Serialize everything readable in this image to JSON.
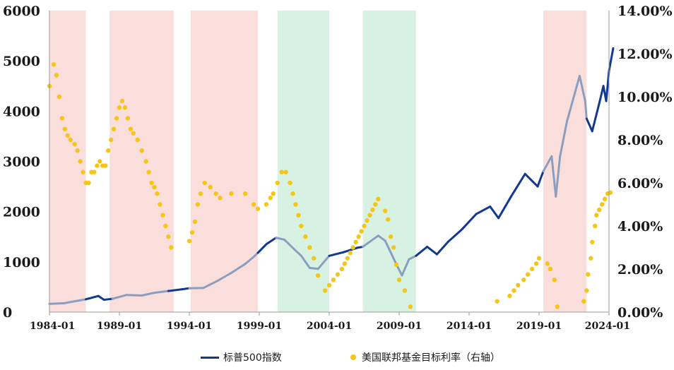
{
  "chart_data": {
    "type": "line",
    "title": "",
    "xlabel": "",
    "ylabel": "",
    "x_ticks": [
      "1984-01",
      "1989-01",
      "1994-01",
      "1999-01",
      "2004-01",
      "2009-01",
      "2014-01",
      "2019-01",
      "2024-01"
    ],
    "xlim": [
      1984.0,
      2024.0
    ],
    "ylim": [
      0,
      6000
    ],
    "ylim_right": [
      0,
      0.14
    ],
    "y_ticks_left": [
      "0",
      "1000",
      "2000",
      "3000",
      "4000",
      "5000",
      "6000"
    ],
    "y_ticks_right": [
      "0.00%",
      "2.00%",
      "4.00%",
      "6.00%",
      "8.00%",
      "10.00%",
      "12.00%",
      "14.00%"
    ],
    "grid": false,
    "legend_position": "bottom",
    "shaded_periods": [
      {
        "start": 1984.0,
        "end": 1986.6,
        "kind": "red"
      },
      {
        "start": 1988.3,
        "end": 1992.9,
        "kind": "red"
      },
      {
        "start": 1994.1,
        "end": 1998.9,
        "kind": "red"
      },
      {
        "start": 2000.3,
        "end": 2004.0,
        "kind": "green"
      },
      {
        "start": 2006.4,
        "end": 2010.2,
        "kind": "green"
      },
      {
        "start": 2019.3,
        "end": 2022.4,
        "kind": "red"
      }
    ],
    "colors": {
      "sp500": "#12388f",
      "sp500_faded": "#8c9ec0",
      "fedrate": "#f5c518",
      "red_band": "#f9dedb",
      "green_band": "#d7f2e2",
      "axis": "#9a9a9a"
    },
    "series": [
      {
        "name": "标普500指数",
        "axis": "left",
        "style": "line",
        "points": [
          [
            1984.0,
            165
          ],
          [
            1985.0,
            175
          ],
          [
            1986.0,
            225
          ],
          [
            1986.6,
            255
          ],
          [
            1987.5,
            320
          ],
          [
            1987.9,
            245
          ],
          [
            1988.5,
            265
          ],
          [
            1989.5,
            340
          ],
          [
            1990.6,
            330
          ],
          [
            1991.5,
            385
          ],
          [
            1992.5,
            420
          ],
          [
            1993.5,
            455
          ],
          [
            1994.0,
            475
          ],
          [
            1995.0,
            480
          ],
          [
            1996.0,
            620
          ],
          [
            1997.0,
            780
          ],
          [
            1998.0,
            960
          ],
          [
            1998.6,
            1100
          ],
          [
            1998.9,
            1180
          ],
          [
            1999.5,
            1350
          ],
          [
            2000.2,
            1480
          ],
          [
            2000.8,
            1440
          ],
          [
            2001.5,
            1250
          ],
          [
            2002.0,
            1120
          ],
          [
            2002.6,
            880
          ],
          [
            2003.2,
            860
          ],
          [
            2004.0,
            1120
          ],
          [
            2005.0,
            1190
          ],
          [
            2006.0,
            1280
          ],
          [
            2006.4,
            1300
          ],
          [
            2007.5,
            1520
          ],
          [
            2008.0,
            1420
          ],
          [
            2008.8,
            950
          ],
          [
            2009.2,
            730
          ],
          [
            2009.7,
            1050
          ],
          [
            2010.2,
            1120
          ],
          [
            2011.0,
            1300
          ],
          [
            2011.7,
            1150
          ],
          [
            2012.5,
            1400
          ],
          [
            2013.5,
            1650
          ],
          [
            2014.5,
            1950
          ],
          [
            2015.5,
            2100
          ],
          [
            2016.1,
            1870
          ],
          [
            2017.0,
            2300
          ],
          [
            2018.0,
            2750
          ],
          [
            2018.9,
            2500
          ],
          [
            2019.3,
            2800
          ],
          [
            2019.9,
            3100
          ],
          [
            2020.2,
            2300
          ],
          [
            2020.5,
            3100
          ],
          [
            2021.0,
            3800
          ],
          [
            2021.5,
            4300
          ],
          [
            2021.9,
            4700
          ],
          [
            2022.3,
            4200
          ],
          [
            2022.4,
            3850
          ],
          [
            2022.8,
            3600
          ],
          [
            2023.3,
            4150
          ],
          [
            2023.6,
            4500
          ],
          [
            2023.8,
            4200
          ],
          [
            2024.0,
            4800
          ],
          [
            2024.3,
            5250
          ]
        ]
      },
      {
        "name": "美国联邦基金目标利率（右轴）",
        "axis": "right",
        "style": "dots",
        "points": [
          [
            1984.0,
            0.105
          ],
          [
            1984.3,
            0.115
          ],
          [
            1984.5,
            0.11
          ],
          [
            1984.7,
            0.1
          ],
          [
            1984.9,
            0.09
          ],
          [
            1985.1,
            0.085
          ],
          [
            1985.3,
            0.082
          ],
          [
            1985.5,
            0.08
          ],
          [
            1985.8,
            0.078
          ],
          [
            1986.0,
            0.075
          ],
          [
            1986.2,
            0.07
          ],
          [
            1986.4,
            0.065
          ],
          [
            1986.6,
            0.06
          ],
          [
            1986.8,
            0.06
          ],
          [
            1987.0,
            0.065
          ],
          [
            1987.2,
            0.065
          ],
          [
            1987.4,
            0.068
          ],
          [
            1987.6,
            0.07
          ],
          [
            1987.8,
            0.068
          ],
          [
            1988.0,
            0.068
          ],
          [
            1988.2,
            0.075
          ],
          [
            1988.4,
            0.08
          ],
          [
            1988.6,
            0.085
          ],
          [
            1988.8,
            0.09
          ],
          [
            1989.0,
            0.095
          ],
          [
            1989.2,
            0.098
          ],
          [
            1989.4,
            0.095
          ],
          [
            1989.6,
            0.09
          ],
          [
            1989.8,
            0.085
          ],
          [
            1990.0,
            0.083
          ],
          [
            1990.3,
            0.08
          ],
          [
            1990.6,
            0.075
          ],
          [
            1990.9,
            0.07
          ],
          [
            1991.1,
            0.065
          ],
          [
            1991.3,
            0.06
          ],
          [
            1991.5,
            0.058
          ],
          [
            1991.7,
            0.055
          ],
          [
            1991.9,
            0.05
          ],
          [
            1992.1,
            0.045
          ],
          [
            1992.3,
            0.04
          ],
          [
            1992.5,
            0.035
          ],
          [
            1992.7,
            0.03
          ],
          [
            1994.0,
            0.033
          ],
          [
            1994.2,
            0.037
          ],
          [
            1994.4,
            0.042
          ],
          [
            1994.6,
            0.05
          ],
          [
            1994.8,
            0.055
          ],
          [
            1995.1,
            0.06
          ],
          [
            1995.5,
            0.058
          ],
          [
            1995.9,
            0.055
          ],
          [
            1996.2,
            0.053
          ],
          [
            1997.0,
            0.055
          ],
          [
            1998.0,
            0.055
          ],
          [
            1998.6,
            0.05
          ],
          [
            1998.9,
            0.048
          ],
          [
            1999.5,
            0.05
          ],
          [
            1999.8,
            0.053
          ],
          [
            2000.0,
            0.055
          ],
          [
            2000.3,
            0.06
          ],
          [
            2000.6,
            0.065
          ],
          [
            2000.9,
            0.065
          ],
          [
            2001.2,
            0.06
          ],
          [
            2001.4,
            0.055
          ],
          [
            2001.6,
            0.05
          ],
          [
            2001.8,
            0.045
          ],
          [
            2002.0,
            0.04
          ],
          [
            2002.3,
            0.035
          ],
          [
            2002.6,
            0.03
          ],
          [
            2002.9,
            0.025
          ],
          [
            2003.2,
            0.017
          ],
          [
            2003.7,
            0.01
          ],
          [
            2004.0,
            0.0125
          ],
          [
            2004.3,
            0.015
          ],
          [
            2004.6,
            0.0175
          ],
          [
            2004.9,
            0.02
          ],
          [
            2005.1,
            0.0225
          ],
          [
            2005.3,
            0.025
          ],
          [
            2005.5,
            0.0275
          ],
          [
            2005.7,
            0.03
          ],
          [
            2005.9,
            0.0325
          ],
          [
            2006.1,
            0.035
          ],
          [
            2006.3,
            0.0375
          ],
          [
            2006.5,
            0.04
          ],
          [
            2006.7,
            0.0425
          ],
          [
            2006.9,
            0.045
          ],
          [
            2007.1,
            0.0475
          ],
          [
            2007.3,
            0.05
          ],
          [
            2007.5,
            0.0525
          ],
          [
            2008.0,
            0.047
          ],
          [
            2008.2,
            0.043
          ],
          [
            2008.4,
            0.035
          ],
          [
            2008.6,
            0.03
          ],
          [
            2008.8,
            0.022
          ],
          [
            2009.0,
            0.015
          ],
          [
            2009.4,
            0.01
          ],
          [
            2009.8,
            0.0025
          ],
          [
            2016.0,
            0.005
          ],
          [
            2016.9,
            0.0075
          ],
          [
            2017.2,
            0.01
          ],
          [
            2017.5,
            0.0125
          ],
          [
            2017.9,
            0.015
          ],
          [
            2018.2,
            0.0175
          ],
          [
            2018.5,
            0.02
          ],
          [
            2018.8,
            0.0225
          ],
          [
            2019.0,
            0.025
          ],
          [
            2019.6,
            0.0225
          ],
          [
            2019.8,
            0.02
          ],
          [
            2020.1,
            0.015
          ],
          [
            2020.3,
            0.0025
          ],
          [
            2022.2,
            0.005
          ],
          [
            2022.4,
            0.01
          ],
          [
            2022.5,
            0.0175
          ],
          [
            2022.7,
            0.025
          ],
          [
            2022.8,
            0.0325
          ],
          [
            2023.0,
            0.04
          ],
          [
            2023.1,
            0.045
          ],
          [
            2023.3,
            0.0475
          ],
          [
            2023.5,
            0.05
          ],
          [
            2023.7,
            0.0525
          ],
          [
            2023.9,
            0.055
          ],
          [
            2024.1,
            0.0555
          ]
        ]
      }
    ]
  }
}
